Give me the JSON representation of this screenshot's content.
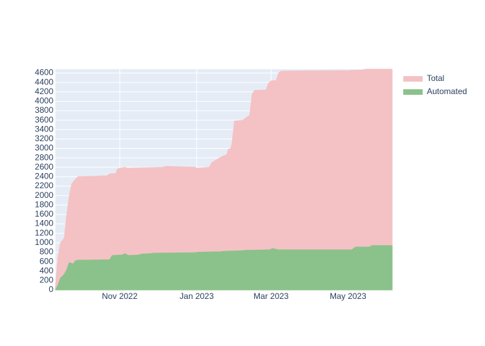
{
  "chart_data": {
    "type": "area",
    "xlim": [
      "2022-09-11",
      "2023-06-05"
    ],
    "xticks": [
      {
        "value": "2022-11-01",
        "label": "Nov 2022"
      },
      {
        "value": "2023-01-01",
        "label": "Jan 2023"
      },
      {
        "value": "2023-03-01",
        "label": "Mar 2023"
      },
      {
        "value": "2023-05-01",
        "label": "May 2023"
      }
    ],
    "ylim": [
      0,
      4680
    ],
    "yticks": [
      0,
      200,
      400,
      600,
      800,
      1000,
      1200,
      1400,
      1600,
      1800,
      2000,
      2200,
      2400,
      2600,
      2800,
      3000,
      3200,
      3400,
      3600,
      3800,
      4000,
      4200,
      4400,
      4600
    ],
    "grid": true,
    "legend": "right",
    "series": [
      {
        "name": "Total",
        "color": "#f4c2c4",
        "x": [
          "2022-09-11",
          "2022-09-13",
          "2022-09-15",
          "2022-09-18",
          "2022-09-20",
          "2022-09-22",
          "2022-09-24",
          "2022-09-27",
          "2022-09-29",
          "2022-10-22",
          "2022-10-24",
          "2022-10-29",
          "2022-10-30",
          "2022-11-01",
          "2022-11-05",
          "2022-11-07",
          "2022-12-05",
          "2022-12-08",
          "2022-12-31",
          "2023-01-01",
          "2023-01-11",
          "2023-01-13",
          "2023-01-18",
          "2023-01-22",
          "2023-01-25",
          "2023-01-26",
          "2023-01-28",
          "2023-01-29",
          "2023-01-31",
          "2023-02-07",
          "2023-02-09",
          "2023-02-12",
          "2023-02-14",
          "2023-02-16",
          "2023-02-25",
          "2023-02-27",
          "2023-03-01",
          "2023-03-05",
          "2023-03-07",
          "2023-03-09",
          "2023-04-30",
          "2023-05-12",
          "2023-05-15",
          "2023-06-05"
        ],
        "values": [
          50,
          700,
          1000,
          1100,
          1600,
          2000,
          2250,
          2350,
          2400,
          2420,
          2460,
          2470,
          2560,
          2580,
          2600,
          2580,
          2600,
          2620,
          2600,
          2580,
          2600,
          2700,
          2780,
          2840,
          2870,
          2980,
          3000,
          3100,
          3580,
          3600,
          3650,
          3700,
          4150,
          4230,
          4240,
          4380,
          4430,
          4440,
          4600,
          4640,
          4650,
          4660,
          4680,
          4680
        ]
      },
      {
        "name": "Automated",
        "color": "#8bc28b",
        "x": [
          "2022-09-11",
          "2022-09-13",
          "2022-09-15",
          "2022-09-18",
          "2022-09-20",
          "2022-09-22",
          "2022-09-25",
          "2022-09-27",
          "2022-09-29",
          "2022-10-24",
          "2022-10-26",
          "2022-11-03",
          "2022-11-05",
          "2022-11-08",
          "2022-11-16",
          "2022-11-18",
          "2022-11-25",
          "2022-11-28",
          "2022-12-31",
          "2023-01-02",
          "2023-01-20",
          "2023-01-23",
          "2023-02-06",
          "2023-02-08",
          "2023-02-28",
          "2023-03-02",
          "2023-03-07",
          "2023-05-04",
          "2023-05-07",
          "2023-05-18",
          "2023-05-20",
          "2023-06-05"
        ],
        "values": [
          0,
          100,
          250,
          330,
          430,
          580,
          550,
          620,
          630,
          640,
          730,
          740,
          770,
          730,
          740,
          760,
          770,
          780,
          790,
          800,
          810,
          820,
          830,
          840,
          850,
          880,
          850,
          850,
          910,
          910,
          940,
          940
        ]
      }
    ]
  }
}
